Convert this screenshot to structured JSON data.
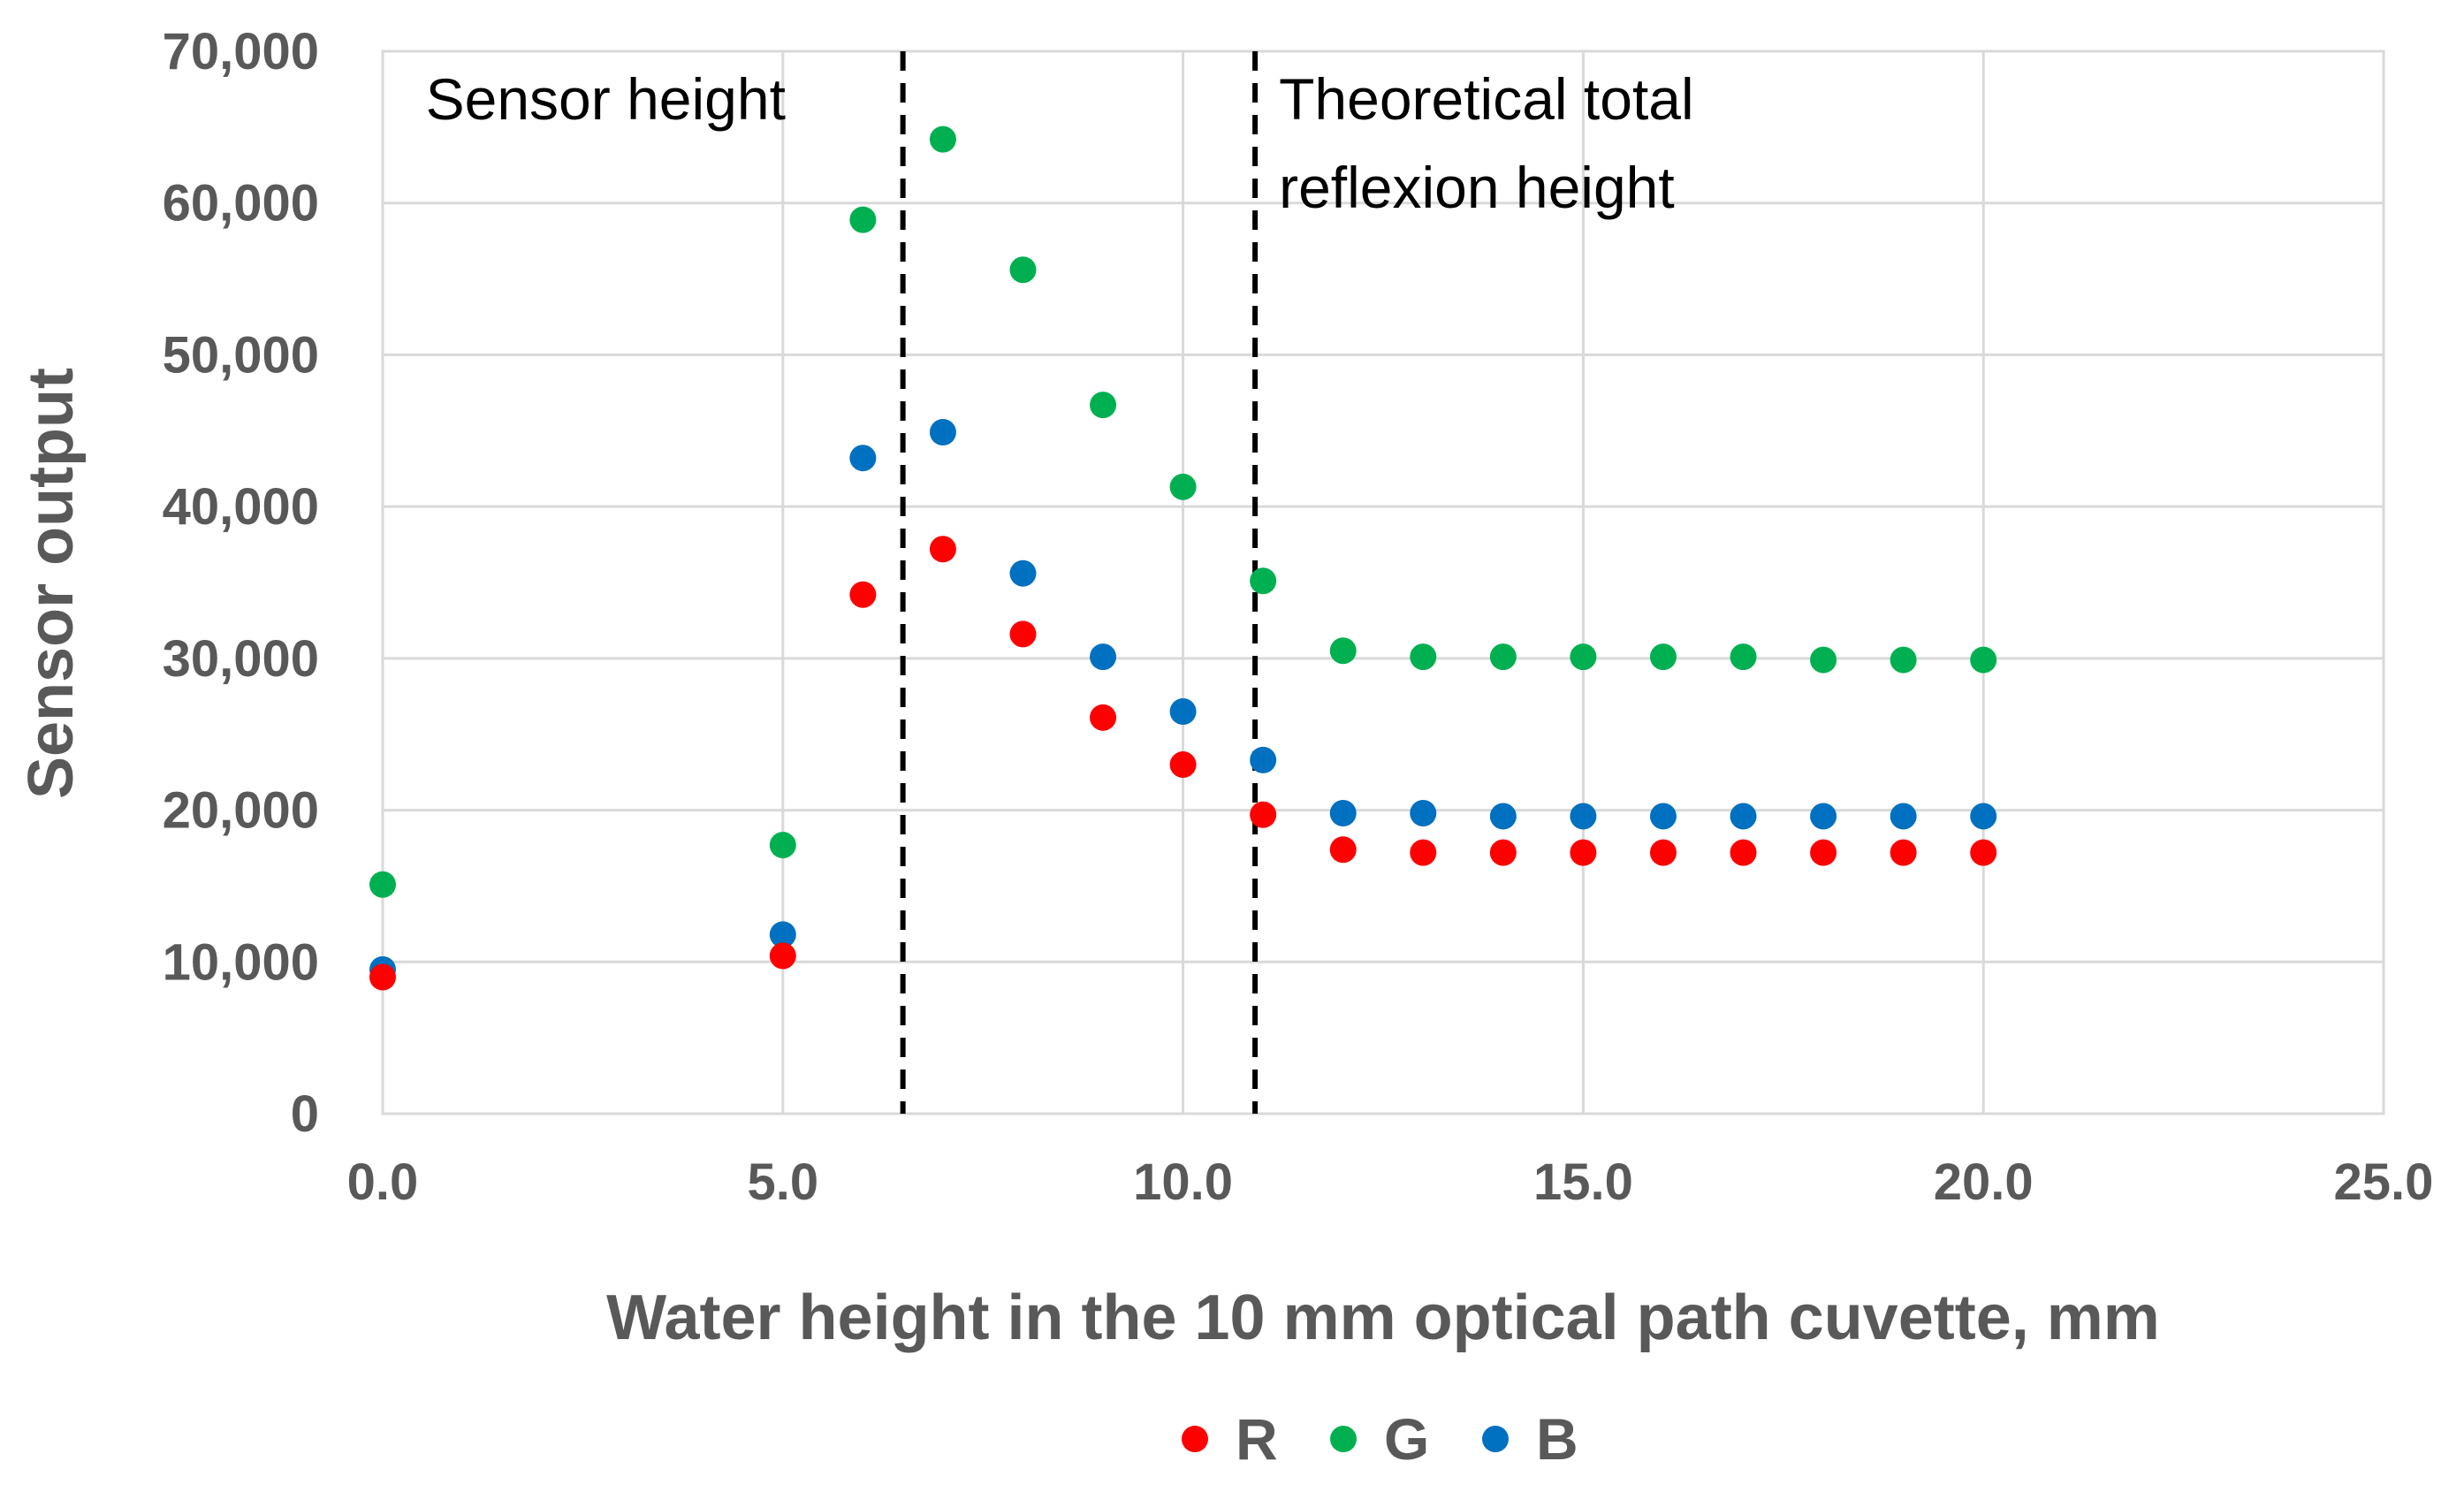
{
  "chart_data": {
    "type": "scatter",
    "title": "",
    "xlabel": "Water height in the 10 mm optical path cuvette, mm",
    "ylabel": "Sensor output",
    "xlim": [
      0,
      25
    ],
    "ylim": [
      0,
      70000
    ],
    "x_ticks": [
      0,
      5,
      10,
      15,
      20,
      25
    ],
    "x_tick_labels": [
      "0.0",
      "5.0",
      "10.0",
      "15.0",
      "20.0",
      "25.0"
    ],
    "y_ticks": [
      0,
      10000,
      20000,
      30000,
      40000,
      50000,
      60000,
      70000
    ],
    "y_tick_labels": [
      "0",
      "10,000",
      "20,000",
      "30,000",
      "40,000",
      "50,000",
      "60,000",
      "70,000"
    ],
    "grid": true,
    "legend_position": "bottom",
    "x": [
      0,
      5,
      6,
      7,
      8,
      9,
      10,
      11,
      12,
      13,
      14,
      15,
      16,
      17,
      18,
      19,
      20
    ],
    "series": [
      {
        "name": "R",
        "color": "#ff0000",
        "values": [
          9000,
          10400,
          34200,
          37200,
          31600,
          26100,
          23000,
          19700,
          17400,
          17200,
          17200,
          17200,
          17200,
          17200,
          17200,
          17200,
          17200
        ]
      },
      {
        "name": "G",
        "color": "#00b050",
        "values": [
          15100,
          17700,
          58900,
          64200,
          55600,
          46700,
          41300,
          35100,
          30500,
          30100,
          30100,
          30100,
          30100,
          30100,
          29900,
          29900,
          29900
        ]
      },
      {
        "name": "B",
        "color": "#0070c0",
        "values": [
          9500,
          11800,
          43200,
          44900,
          35600,
          30100,
          26500,
          23300,
          19800,
          19800,
          19600,
          19600,
          19600,
          19600,
          19600,
          19600,
          19600
        ]
      }
    ],
    "reference_lines": [
      {
        "x": 6.5,
        "label_lines": [
          "Sensor height"
        ]
      },
      {
        "x": 10.9,
        "label_lines": [
          "Theoretical total",
          "reflexion height"
        ]
      }
    ]
  }
}
